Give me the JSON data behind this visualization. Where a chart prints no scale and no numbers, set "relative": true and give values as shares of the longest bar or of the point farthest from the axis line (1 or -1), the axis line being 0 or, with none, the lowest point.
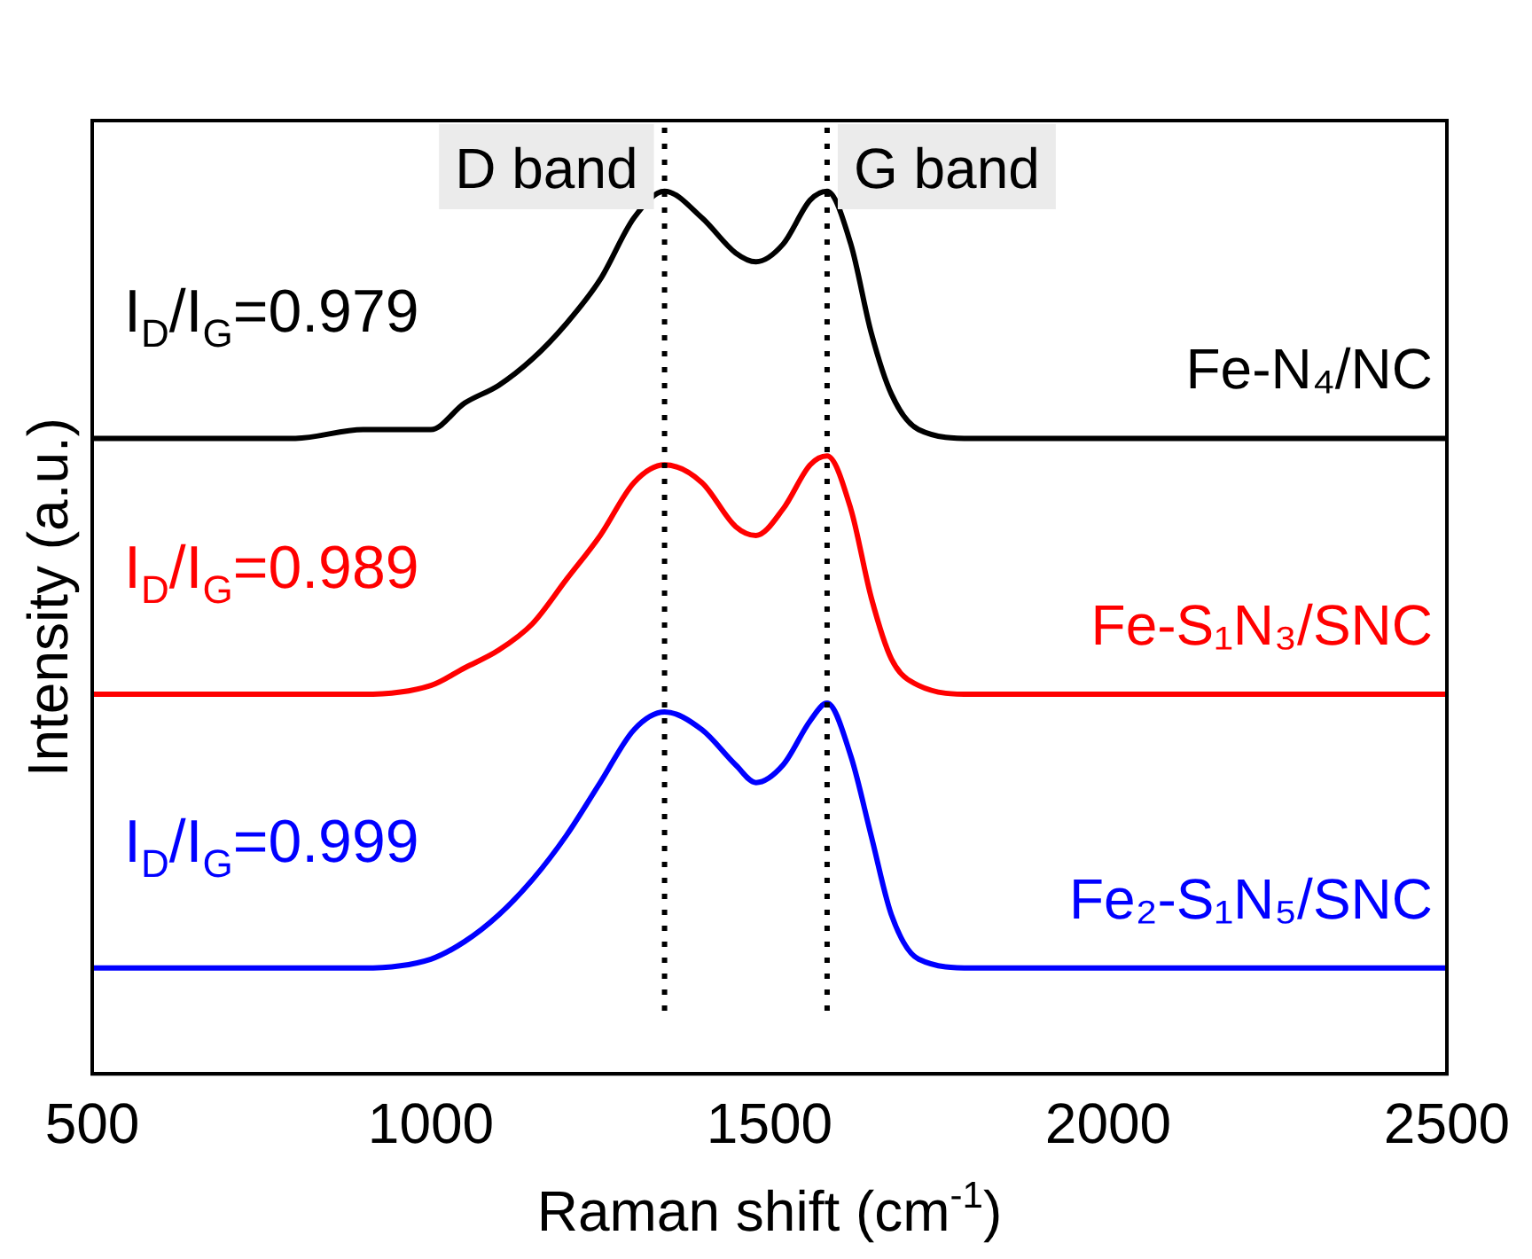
{
  "chart_data": {
    "type": "line",
    "relative": true,
    "xlabel": "Raman shift (cm$^{-1}$)",
    "ylabel": "Intensity (a.u.)",
    "x": [
      500,
      600,
      700,
      800,
      900,
      1000,
      1050,
      1100,
      1150,
      1200,
      1250,
      1300,
      1345,
      1400,
      1450,
      1480,
      1520,
      1560,
      1585,
      1620,
      1650,
      1680,
      1720,
      1800,
      1900,
      2000,
      2100,
      2200,
      2300,
      2400,
      2500
    ],
    "series": [
      {
        "name": "Fe-N₄/NC",
        "color": "#000000",
        "values": [
          0.72,
          0.72,
          0.72,
          0.72,
          0.73,
          0.73,
          0.76,
          0.78,
          0.81,
          0.85,
          0.9,
          0.97,
          1.0,
          0.97,
          0.93,
          0.92,
          0.94,
          0.99,
          1.0,
          0.94,
          0.84,
          0.77,
          0.73,
          0.72,
          0.72,
          0.72,
          0.72,
          0.72,
          0.72,
          0.72,
          0.72
        ]
      },
      {
        "name": "Fe-S₁N₃/SNC",
        "color": "#ff0000",
        "values": [
          0.43,
          0.43,
          0.43,
          0.43,
          0.43,
          0.44,
          0.46,
          0.48,
          0.51,
          0.56,
          0.61,
          0.67,
          0.69,
          0.67,
          0.62,
          0.61,
          0.64,
          0.69,
          0.7,
          0.64,
          0.54,
          0.47,
          0.44,
          0.43,
          0.43,
          0.43,
          0.43,
          0.43,
          0.43,
          0.43,
          0.43
        ]
      },
      {
        "name": "Fe₂-S₁N₅/SNC",
        "color": "#0000ff",
        "values": [
          0.12,
          0.12,
          0.12,
          0.12,
          0.12,
          0.13,
          0.15,
          0.18,
          0.22,
          0.27,
          0.33,
          0.39,
          0.41,
          0.39,
          0.35,
          0.33,
          0.35,
          0.4,
          0.42,
          0.36,
          0.27,
          0.18,
          0.13,
          0.12,
          0.12,
          0.12,
          0.12,
          0.12,
          0.12,
          0.12,
          0.12
        ]
      }
    ],
    "annotations": [
      "I$_{D}$/I$_{G}$=0.979",
      "I$_{D}$/I$_{G}$=0.989",
      "I$_{D}$/I$_{G}$=0.999"
    ],
    "ref_lines": [
      {
        "axis": "x",
        "value": 1345,
        "label": "D band",
        "line_style": "dotted"
      },
      {
        "axis": "x",
        "value": 1585,
        "label": "G band",
        "line_style": "dotted"
      }
    ],
    "xlim": [
      500,
      2500
    ],
    "xticks": [
      500,
      1000,
      1500,
      2000,
      2500
    ],
    "grid": false,
    "legend": false,
    "marker": "none",
    "line_style": "solid"
  }
}
